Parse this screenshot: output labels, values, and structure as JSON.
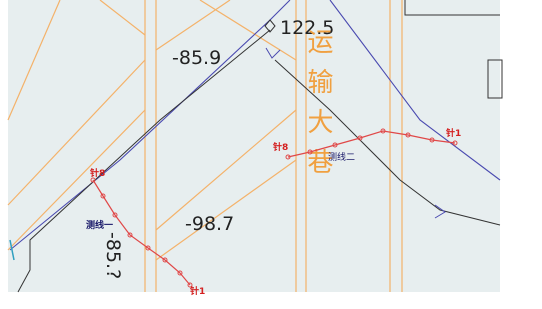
{
  "labels": {
    "elevation_1": "-85.9",
    "elevation_2": "122.5",
    "elevation_3": "-98.7",
    "elevation_4": "-85.?"
  },
  "roadway": "运输大巷",
  "survey_lines": [
    {
      "name": "测线二",
      "start": "针8",
      "end": "针1"
    },
    {
      "name": "测线一",
      "start": "针8",
      "end": "针1"
    }
  ]
}
